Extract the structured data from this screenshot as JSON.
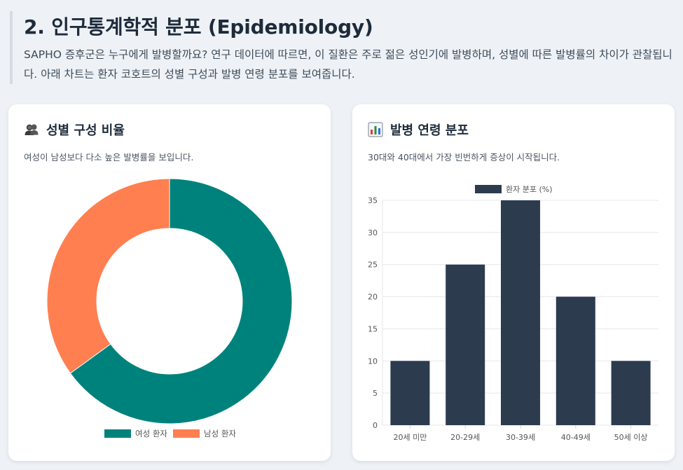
{
  "section": {
    "title": "2. 인구통계학적 분포 (Epidemiology)",
    "description": "SAPHO 증후군은 누구에게 발병할까요? 연구 데이터에 따르면, 이 질환은 주로 젊은 성인기에 발병하며, 성별에 따른 발병률의 차이가 관찰됩니다. 아래 차트는 환자 코호트의 성별 구성과 발병 연령 분포를 보여줍니다."
  },
  "left_card": {
    "icon": "people-icon",
    "title": "성별 구성 비율",
    "description": "여성이 남성보다 다소 높은 발병률을 보입니다."
  },
  "right_card": {
    "icon": "bar-chart-icon",
    "title": "발병 연령 분포",
    "description": "30대와 40대에서 가장 빈번하게 증상이 시작됩니다."
  },
  "colors": {
    "female": "#00827c",
    "male": "#ff7f50",
    "bar": "#2c3b4e"
  },
  "chart_data": [
    {
      "type": "pie",
      "variant": "doughnut",
      "title": "성별 구성 비율",
      "labels": [
        "여성 환자",
        "남성 환자"
      ],
      "values": [
        65,
        35
      ],
      "legend": "bottom"
    },
    {
      "type": "bar",
      "title": "발병 연령 분포",
      "categories": [
        "20세 미만",
        "20-29세",
        "30-39세",
        "40-49세",
        "50세 이상"
      ],
      "series": [
        {
          "name": "환자 분포 (%)",
          "values": [
            10,
            25,
            35,
            20,
            10
          ]
        }
      ],
      "ylim": [
        0,
        35
      ],
      "yticks": [
        0,
        5,
        10,
        15,
        20,
        25,
        30,
        35
      ],
      "legend": "top",
      "grid": true
    }
  ]
}
